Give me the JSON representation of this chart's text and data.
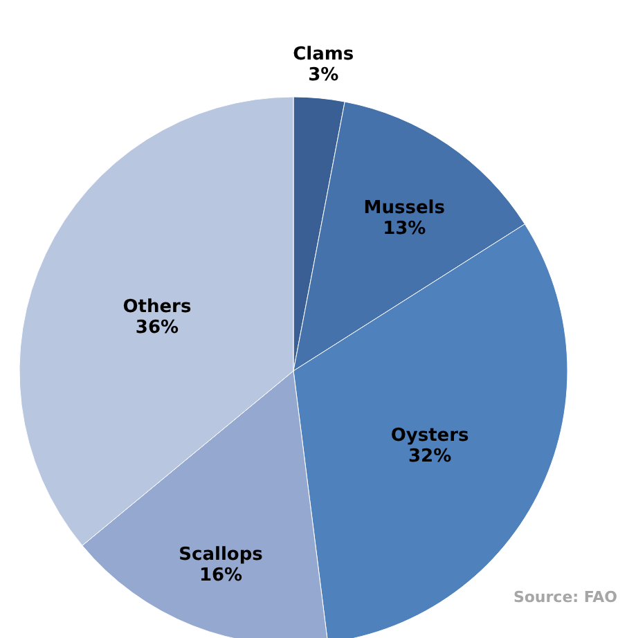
{
  "chart_data": {
    "type": "pie",
    "categories": [
      "Clams",
      "Mussels",
      "Oysters",
      "Scallops",
      "Others"
    ],
    "values": [
      3,
      13,
      32,
      16,
      36
    ],
    "value_labels": [
      "3%",
      "13%",
      "32%",
      "16%",
      "36%"
    ],
    "colors": [
      "#3a5f94",
      "#4572ab",
      "#4f81bd",
      "#95a9d0",
      "#b9c6e0"
    ],
    "annotations": [
      "Source: FAO"
    ]
  }
}
